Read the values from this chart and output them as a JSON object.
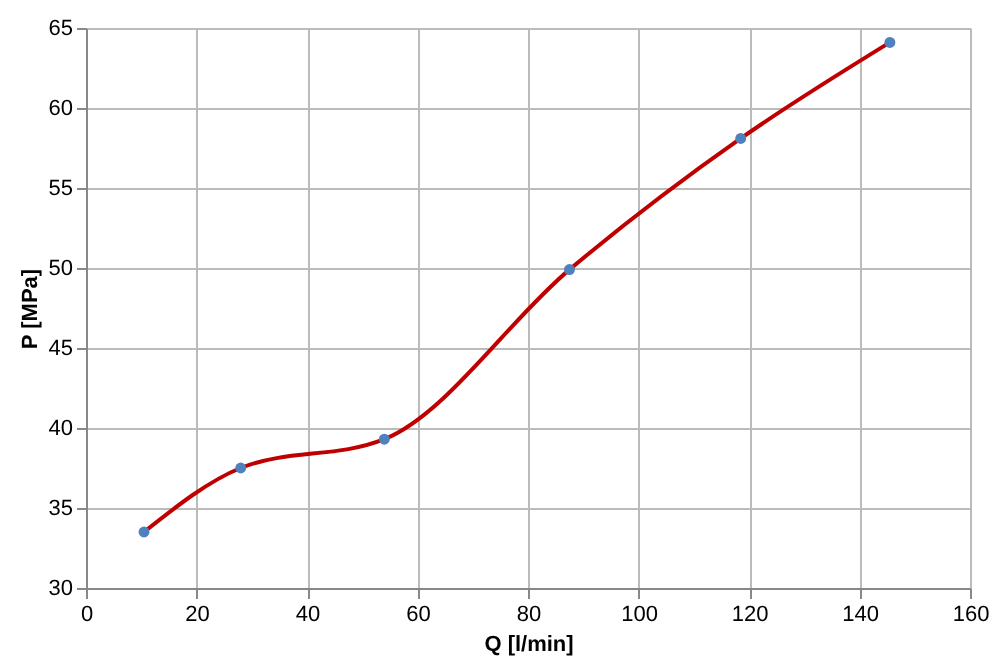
{
  "chart_data": {
    "type": "line",
    "xlabel": "Q [l/min]",
    "ylabel": "P [MPa]",
    "x": [
      10.5,
      28,
      54,
      87.5,
      118.5,
      145.5
    ],
    "series": [
      {
        "color": "#c00000",
        "marker": "none",
        "values": [
          33.5,
          37.5,
          39.3,
          49.9,
          58.1,
          64.1
        ]
      },
      {
        "type": "scatter",
        "color": "#4f81bd",
        "marker": "circle",
        "values": [
          33.5,
          37.5,
          39.3,
          49.9,
          58.1,
          64.1
        ]
      }
    ],
    "xlim": [
      0,
      160
    ],
    "xticks": [
      0,
      20,
      40,
      60,
      80,
      100,
      120,
      140,
      160
    ],
    "ylim": [
      30,
      65
    ],
    "yticks": [
      30,
      35,
      40,
      45,
      50,
      55,
      60,
      65
    ],
    "grid": true
  }
}
